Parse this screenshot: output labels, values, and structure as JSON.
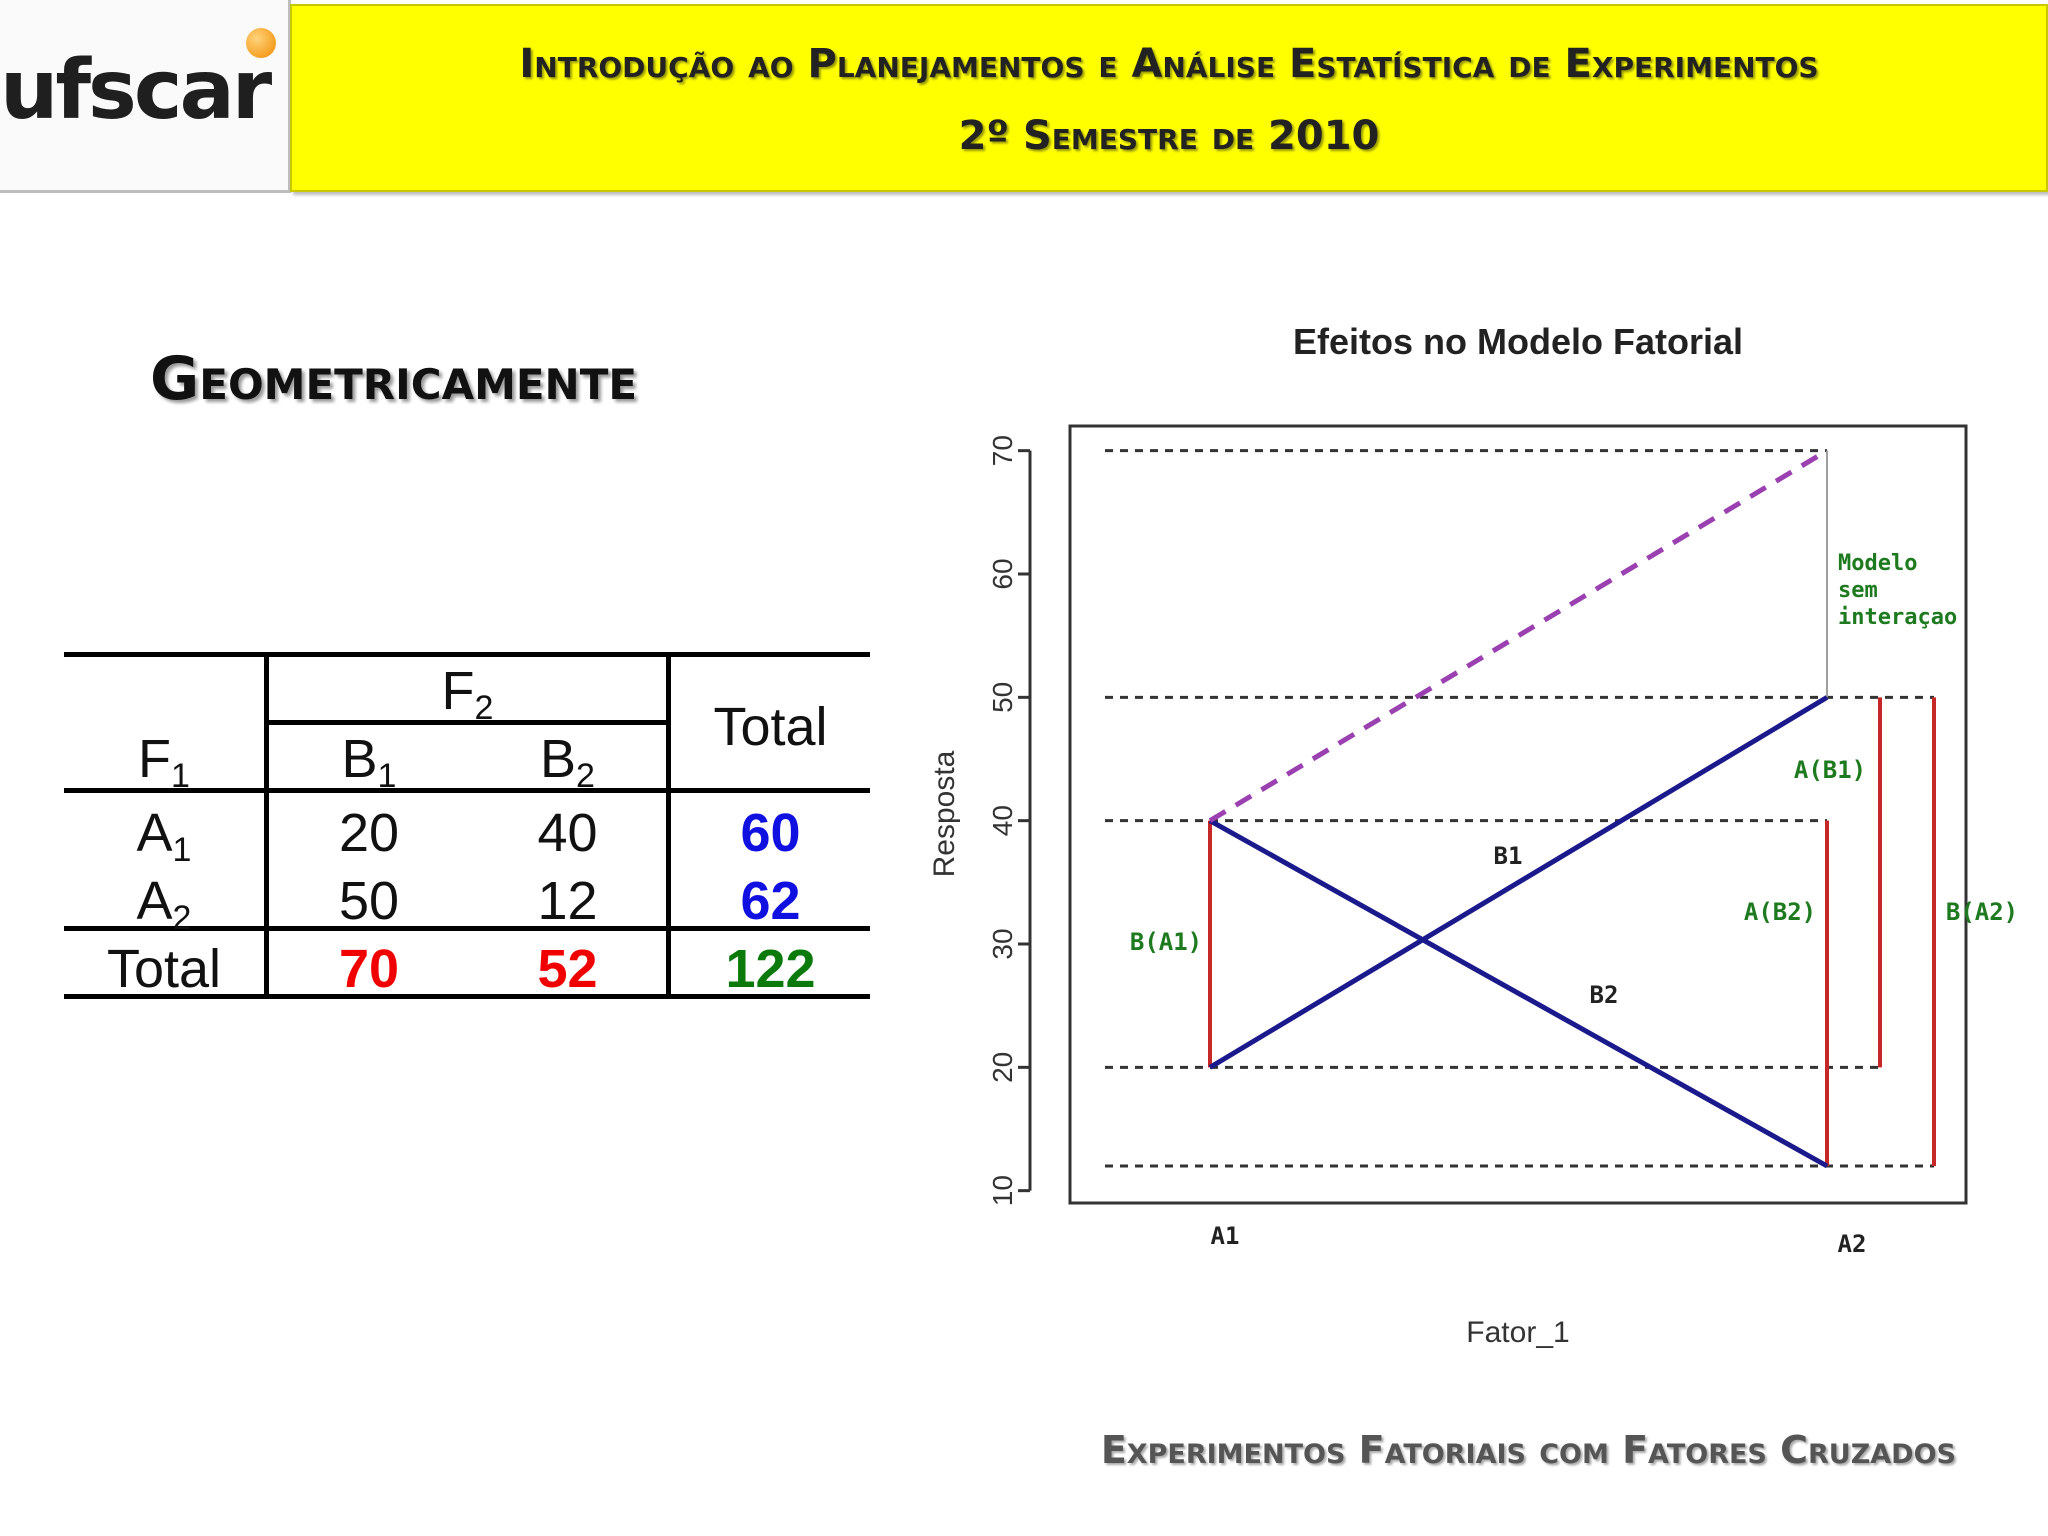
{
  "header": {
    "logo_text": "ufscar",
    "title_line1": "Introdução ao Planejamentos e Análise Estatística de Experimentos",
    "title_line2": "2º Semestre de 2010"
  },
  "section_title": "Geometricamente",
  "table": {
    "f2_label": "F",
    "f2_sub": "2",
    "f1_label": "F",
    "f1_sub": "1",
    "total_header": "Total",
    "col_labels": [
      {
        "l": "B",
        "s": "1"
      },
      {
        "l": "B",
        "s": "2"
      }
    ],
    "rows": [
      {
        "l": "A",
        "s": "1",
        "values": [
          "20",
          "40"
        ],
        "total": "60"
      },
      {
        "l": "A",
        "s": "2",
        "values": [
          "50",
          "12"
        ],
        "total": "62"
      }
    ],
    "total_row_label": "Total",
    "col_totals": [
      "70",
      "52"
    ],
    "grand_total": "122",
    "colors": {
      "row_total": "#1010e0",
      "col_total": "#f00000",
      "grand_total": "#0a7a0a"
    }
  },
  "chart_data": {
    "type": "line",
    "title": "Efeitos no Modelo Fatorial",
    "xlabel": "Fator_1",
    "ylabel": "Resposta",
    "categories": [
      "A1",
      "A2"
    ],
    "yticks": [
      10,
      20,
      30,
      40,
      50,
      60,
      70
    ],
    "ylim": [
      9,
      72
    ],
    "series": [
      {
        "name": "B1",
        "values": [
          20,
          50
        ],
        "color": "#1a1a8c",
        "style": "solid"
      },
      {
        "name": "B2",
        "values": [
          40,
          12
        ],
        "color": "#1a1a8c",
        "style": "solid"
      },
      {
        "name": "",
        "values": [
          40,
          70
        ],
        "color": "#9b40b0",
        "style": "dashed"
      }
    ],
    "reference_lines": [
      70,
      50,
      40,
      20,
      12
    ],
    "effect_segments": [
      {
        "label": "B(A1)",
        "at": "A1",
        "from": 20,
        "to": 40
      },
      {
        "label": "A(B2)",
        "at": "A2",
        "from": 12,
        "to": 40
      },
      {
        "label": "A(B1)",
        "at": "A2+",
        "from": 20,
        "to": 50
      },
      {
        "label": "B(A2)",
        "at": "A2++",
        "from": 12,
        "to": 50
      }
    ],
    "annotation": {
      "lines": [
        "Modelo",
        "sem",
        "interaçao"
      ]
    },
    "colors": {
      "effect": "#c62828",
      "label": "#1e7a1e",
      "reference": "#333333"
    }
  },
  "footer": "Experimentos Fatoriais com Fatores Cruzados"
}
